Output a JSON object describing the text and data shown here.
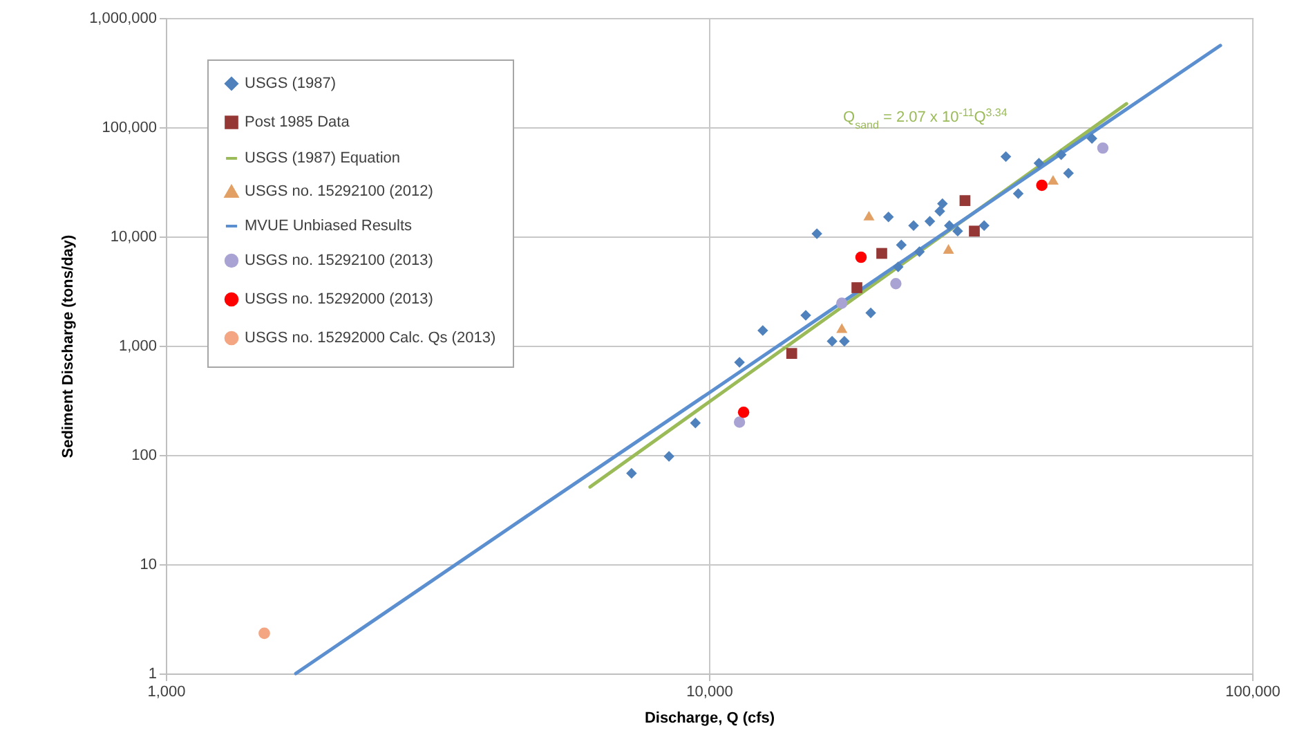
{
  "chart_data": {
    "type": "scatter",
    "xlabel": "Discharge, Q (cfs)",
    "ylabel": "Sediment Discharge (tons/day)",
    "log": "xy",
    "grid": true,
    "legend": "top left",
    "xlim": [
      1000,
      100000
    ],
    "xticks": [
      {
        "value": 1000,
        "label": "1,000"
      },
      {
        "value": 10000,
        "label": "10,000"
      },
      {
        "value": 100000,
        "label": "100,000"
      }
    ],
    "ylim": [
      1,
      1000000
    ],
    "yticks": [
      1,
      10,
      100,
      {
        "value": 1000,
        "label": "1,000"
      },
      {
        "value": 10000,
        "label": "10,000"
      },
      {
        "value": 100000,
        "label": "100,000"
      },
      {
        "value": 1000000,
        "label": "1,000,000"
      }
    ],
    "annotations": [
      "Q$_{sand}$ = 2.07 x 10$^{-11}$Q$^{3.34}$"
    ],
    "series": [
      {
        "name": "USGS (1987)",
        "color": "#4f81bd",
        "marker": "diamond",
        "x": [
          7200,
          8440,
          9440,
          11380,
          12560,
          15070,
          15800,
          16850,
          17750,
          19850,
          21400,
          22300,
          22600,
          23800,
          24400,
          25500,
          26600,
          26900,
          27700,
          28700,
          32100,
          35200,
          37100,
          40500,
          44500,
          45900,
          50700
        ],
        "values": [
          68,
          97,
          196,
          705,
          1380,
          1900,
          10600,
          1100,
          1100,
          2000,
          15100,
          5270,
          8370,
          12600,
          7250,
          13800,
          17000,
          20000,
          12600,
          11200,
          12600,
          53900,
          24700,
          46900,
          56000,
          38000,
          79000
        ]
      },
      {
        "name": "Post 1985 Data",
        "color": "#953735",
        "marker": "square",
        "x": [
          14200,
          18720,
          20800,
          29600,
          30800
        ],
        "values": [
          850,
          3400,
          7000,
          21300,
          11200
        ]
      },
      {
        "name": "USGS (1987) Equation",
        "type": "line",
        "color": "#9bbb59",
        "marker": "none",
        "x": [
          6040,
          58700
        ],
        "values": [
          51,
          164000
        ]
      },
      {
        "name": "USGS no. 15292100 (2012)",
        "color": "#e2a064",
        "marker": "triangle",
        "x": [
          17560,
          19700,
          27600,
          43000
        ],
        "values": [
          1450,
          15500,
          7700,
          33000
        ]
      },
      {
        "name": "MVUE Unbiased Results",
        "type": "line",
        "color": "#5b8fd0",
        "marker": "none",
        "x": [
          1735,
          5000,
          10000,
          20000,
          50000,
          87400
        ],
        "values": [
          1,
          36,
          370,
          3860,
          85000,
          560000
        ]
      },
      {
        "name": "USGS no. 15292100 (2013)",
        "color": "#a9a3d4",
        "marker": "circle",
        "x": [
          11380,
          17560,
          22080,
          53100
        ],
        "values": [
          200,
          2450,
          3700,
          64500
        ]
      },
      {
        "name": "USGS no. 15292000 (2013)",
        "color": "#ff0000",
        "marker": "circle",
        "x": [
          11580,
          19050,
          41000
        ],
        "values": [
          246,
          6450,
          29400
        ]
      },
      {
        "name": "USGS no. 15292000 Calc. Qs (2013)",
        "color": "#f4a582",
        "marker": "circle",
        "x": [
          1518
        ],
        "values": [
          2.33
        ]
      }
    ]
  }
}
